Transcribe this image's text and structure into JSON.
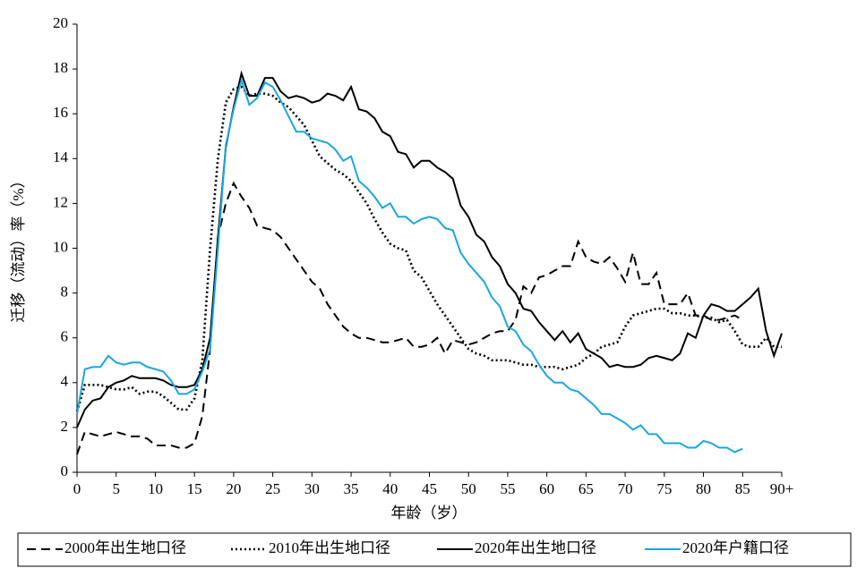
{
  "chart_data": {
    "type": "line",
    "x_label": "年龄（岁）",
    "y_label": "迁移（流动）率（%）",
    "x": [
      0,
      1,
      2,
      3,
      4,
      5,
      6,
      7,
      8,
      9,
      10,
      11,
      12,
      13,
      14,
      15,
      16,
      17,
      18,
      19,
      20,
      21,
      22,
      23,
      24,
      25,
      26,
      27,
      28,
      29,
      30,
      31,
      32,
      33,
      34,
      35,
      36,
      37,
      38,
      39,
      40,
      41,
      42,
      43,
      44,
      45,
      46,
      47,
      48,
      49,
      50,
      51,
      52,
      53,
      54,
      55,
      56,
      57,
      58,
      59,
      60,
      61,
      62,
      63,
      64,
      65,
      66,
      67,
      68,
      69,
      70,
      71,
      72,
      73,
      74,
      75,
      76,
      77,
      78,
      79,
      80,
      81,
      82,
      83,
      84,
      85,
      86,
      87,
      88,
      89,
      90
    ],
    "xlim": [
      0,
      90
    ],
    "xticks": [
      0,
      5,
      10,
      15,
      20,
      25,
      30,
      35,
      40,
      45,
      50,
      55,
      60,
      65,
      70,
      75,
      80,
      85,
      {
        "value": 90,
        "label": "90+"
      }
    ],
    "ylim": [
      0,
      20
    ],
    "yticks": [
      0,
      2,
      4,
      6,
      8,
      10,
      12,
      14,
      16,
      18,
      20
    ],
    "grid": false,
    "legend": "bottom",
    "series": [
      {
        "name": "2000年出生地口径",
        "color": "#000000",
        "dash": "dashed",
        "values": [
          0.8,
          1.8,
          1.7,
          1.6,
          1.7,
          1.8,
          1.7,
          1.6,
          1.6,
          1.5,
          1.2,
          1.2,
          1.2,
          1.1,
          1.1,
          1.3,
          2.5,
          5.5,
          10.5,
          12,
          12.9,
          12.3,
          11.8,
          11,
          10.9,
          10.8,
          10.5,
          10,
          9.5,
          9,
          8.5,
          8.2,
          7.5,
          7,
          6.5,
          6.2,
          6,
          6,
          5.9,
          5.8,
          5.8,
          5.9,
          6,
          5.6,
          5.6,
          5.7,
          6,
          5.3,
          5.9,
          5.8,
          5.7,
          5.8,
          6,
          6.2,
          6.3,
          6.3,
          6.8,
          8.3,
          8,
          8.7,
          8.8,
          9,
          9.2,
          9.2,
          10.3,
          9.6,
          9.4,
          9.3,
          9.6,
          9.1,
          8.5,
          9.8,
          8.4,
          8.4,
          8.9,
          7.5,
          7.5,
          7.5,
          8,
          7,
          7,
          6.8,
          6.8,
          6.9,
          7,
          6.8,
          null,
          null,
          null,
          null,
          null
        ]
      },
      {
        "name": "2010年出生地口径",
        "color": "#000000",
        "dash": "dotted",
        "values": [
          2.7,
          3.9,
          3.9,
          3.9,
          3.8,
          3.7,
          3.7,
          3.8,
          3.5,
          3.6,
          3.6,
          3.4,
          3.1,
          2.8,
          2.8,
          3.3,
          5,
          10,
          14,
          16.5,
          17.1,
          17.2,
          16.8,
          16.9,
          16.9,
          16.8,
          16.5,
          16.3,
          15.9,
          15.5,
          14.8,
          14.1,
          13.8,
          13.5,
          13.3,
          13,
          12.5,
          12,
          11.3,
          10.7,
          10.2,
          10,
          9.9,
          9,
          8.7,
          8.1,
          7.5,
          7,
          6.5,
          6,
          5.5,
          5.3,
          5.2,
          5,
          5,
          5,
          4.9,
          4.8,
          4.8,
          4.7,
          4.7,
          4.7,
          4.6,
          4.7,
          4.8,
          5.1,
          5.3,
          5.6,
          5.7,
          5.8,
          6.5,
          7,
          7.1,
          7.2,
          7.3,
          7.3,
          7.1,
          7.1,
          7,
          7,
          6.9,
          6.9,
          6.7,
          6.8,
          6.3,
          5.7,
          5.6,
          5.6,
          6,
          5.6,
          5.6
        ]
      },
      {
        "name": "2020年出生地口径",
        "color": "#000000",
        "dash": "solid",
        "values": [
          2,
          2.8,
          3.2,
          3.3,
          3.8,
          4,
          4.1,
          4.3,
          4.2,
          4.2,
          4.2,
          4.1,
          3.9,
          3.8,
          3.8,
          3.9,
          4.6,
          6,
          10.5,
          14.5,
          16.3,
          17.8,
          16.8,
          16.8,
          17.6,
          17.6,
          17,
          16.7,
          16.8,
          16.7,
          16.5,
          16.6,
          16.9,
          16.8,
          16.6,
          17.2,
          16.2,
          16.1,
          15.8,
          15.2,
          15,
          14.3,
          14.2,
          13.6,
          13.9,
          13.9,
          13.6,
          13.4,
          13.1,
          11.9,
          11.4,
          10.6,
          10.3,
          9.6,
          9.2,
          8.4,
          8,
          7.3,
          7.2,
          6.7,
          6.3,
          5.9,
          6.3,
          5.8,
          6.2,
          5.5,
          5.3,
          5.1,
          4.7,
          4.8,
          4.7,
          4.7,
          4.8,
          5.1,
          5.2,
          5.1,
          5,
          5.3,
          6.2,
          6,
          7,
          7.5,
          7.4,
          7.2,
          7.2,
          7.5,
          7.8,
          8.2,
          6.3,
          5.2,
          6.2
        ]
      },
      {
        "name": "2020年户籍口径",
        "color": "#1aa7e0",
        "dash": "solid",
        "values": [
          2.6,
          4.6,
          4.7,
          4.7,
          5.2,
          4.9,
          4.8,
          4.9,
          4.9,
          4.7,
          4.6,
          4.5,
          4.1,
          3.5,
          3.5,
          3.7,
          4.5,
          5.5,
          10,
          14.6,
          16.2,
          17.5,
          16.4,
          16.7,
          17.4,
          17.2,
          16.6,
          15.9,
          15.2,
          15.2,
          14.9,
          14.8,
          14.7,
          14.4,
          13.9,
          14.1,
          13,
          12.7,
          12.3,
          11.8,
          12,
          11.4,
          11.4,
          11.1,
          11.3,
          11.4,
          11.3,
          10.9,
          10.8,
          9.8,
          9.3,
          8.9,
          8.5,
          7.8,
          7.4,
          6.5,
          6.3,
          5.7,
          5.4,
          4.8,
          4.3,
          4,
          4,
          3.7,
          3.6,
          3.3,
          3,
          2.6,
          2.6,
          2.4,
          2.2,
          1.9,
          2.1,
          1.7,
          1.7,
          1.3,
          1.3,
          1.3,
          1.1,
          1.1,
          1.4,
          1.3,
          1.1,
          1.1,
          0.9,
          1.05,
          null,
          null,
          null,
          null,
          null
        ]
      }
    ]
  }
}
